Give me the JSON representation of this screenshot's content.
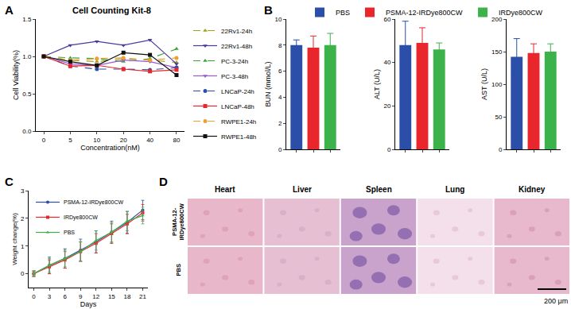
{
  "chart_data": [
    {
      "panel": "A",
      "type": "line",
      "title": "Cell Counting Kit-8",
      "x_label": "Concentration(nM)",
      "y_label": "Cell Viability(%)",
      "categories": [
        "0",
        "5",
        "10",
        "20",
        "40",
        "80"
      ],
      "ylim": [
        0,
        1.5
      ],
      "yticks": [
        {
          "value": 0,
          "label": "0.0"
        },
        0.5,
        {
          "value": 1,
          "label": "1.0"
        },
        1.5
      ],
      "grid": false,
      "legend": "right",
      "series": [
        {
          "name": "22Rv1-24h",
          "color": "#a0a020",
          "marker": "triangle-up",
          "line_style": "dash",
          "values": [
            1,
            0.95,
            0.93,
            0.97,
            0.95,
            0.92
          ]
        },
        {
          "name": "22Rv1-48h",
          "color": "#4b3a9a",
          "marker": "triangle-down",
          "line_style": "solid",
          "values": [
            1,
            1.15,
            1.2,
            1.15,
            1.22,
            0.9
          ]
        },
        {
          "name": "PC-3-24h",
          "color": "#3aa63a",
          "marker": "triangle-up",
          "line_style": "dash",
          "values": [
            1,
            0.98,
            0.97,
            0.93,
            0.97,
            1.1
          ]
        },
        {
          "name": "PC-3-48h",
          "color": "#9b59d0",
          "marker": "triangle-down",
          "line_style": "solid",
          "values": [
            1,
            0.9,
            0.88,
            0.95,
            0.93,
            0.85
          ]
        },
        {
          "name": "LNCaP-24h",
          "color": "#2a4fa8",
          "marker": "circle",
          "line_style": "dash",
          "values": [
            1,
            0.87,
            0.83,
            0.83,
            0.82,
            0.85
          ]
        },
        {
          "name": "LNCaP-48h",
          "color": "#e8262c",
          "marker": "square",
          "line_style": "solid",
          "values": [
            1,
            0.87,
            0.88,
            0.83,
            0.8,
            0.82
          ]
        },
        {
          "name": "RWPE1-24h",
          "color": "#f0a030",
          "marker": "circle",
          "line_style": "dash",
          "values": [
            1,
            0.95,
            0.97,
            0.98,
            0.95,
            0.98
          ]
        },
        {
          "name": "RWPE1-48h",
          "color": "#111111",
          "marker": "square",
          "line_style": "solid",
          "values": [
            1,
            0.93,
            0.88,
            1.05,
            1.02,
            0.75
          ]
        }
      ]
    },
    {
      "panel": "B",
      "type": "bar",
      "legend": "top",
      "tick_labels": "y",
      "grid": false,
      "categories": [
        "PBS",
        "PSMA-12-IRDye800CW",
        "IRDye800CW"
      ],
      "colors": [
        "#2b4fa8",
        "#e8262c",
        "#3cb34a"
      ],
      "subplots": [
        {
          "y_label": "BUN (mmol/L)",
          "ylim": [
            0,
            10
          ],
          "yticks": [
            0,
            2,
            4,
            6,
            8,
            10
          ],
          "values": [
            8.0,
            7.8,
            8.0
          ],
          "errors": [
            0.4,
            0.9,
            0.9
          ]
        },
        {
          "y_label": "ALT (U/L)",
          "ylim": [
            0,
            60
          ],
          "yticks": [
            0,
            20,
            40,
            60
          ],
          "values": [
            48,
            49,
            46
          ],
          "errors": [
            11,
            7,
            3
          ]
        },
        {
          "y_label": "AST (U/L)",
          "ylim": [
            0,
            200
          ],
          "yticks": [
            0,
            50,
            100,
            150,
            200
          ],
          "values": [
            142,
            148,
            150
          ],
          "errors": [
            28,
            14,
            12
          ]
        }
      ]
    },
    {
      "panel": "C",
      "type": "line",
      "x_label": "Days",
      "y_label": "Weight change(%)",
      "x": [
        0,
        3,
        6,
        9,
        12,
        15,
        18,
        21
      ],
      "xlim": [
        -1,
        22
      ],
      "xticks": [
        0,
        3,
        6,
        9,
        12,
        15,
        18,
        21
      ],
      "ylim": [
        -0.5,
        3
      ],
      "yticks": [
        0,
        1,
        2,
        3
      ],
      "grid": false,
      "legend": "top-left",
      "series": [
        {
          "name": "PSMA-12-IRDye800CW",
          "color": "#2b4fa8",
          "marker": "circle",
          "line_style": "solid",
          "values": [
            0,
            0.3,
            0.55,
            0.85,
            1.15,
            1.5,
            1.85,
            2.3
          ],
          "errors": [
            0.1,
            0.3,
            0.35,
            0.4,
            0.4,
            0.4,
            0.4,
            0.35
          ]
        },
        {
          "name": "IRDye800CW",
          "color": "#e8262c",
          "marker": "square",
          "line_style": "solid",
          "values": [
            0,
            0.25,
            0.5,
            0.8,
            1.1,
            1.45,
            1.8,
            2.2
          ],
          "errors": [
            0.1,
            0.25,
            0.3,
            0.35,
            0.35,
            0.35,
            0.35,
            0.3
          ]
        },
        {
          "name": "PBS",
          "color": "#3cb34a",
          "marker": "triangle-up",
          "line_style": "solid",
          "values": [
            0,
            0.3,
            0.55,
            0.8,
            1.2,
            1.5,
            1.9,
            2.1
          ],
          "errors": [
            0.1,
            0.25,
            0.3,
            0.35,
            0.35,
            0.35,
            0.35,
            0.3
          ]
        }
      ]
    },
    {
      "panel": "D",
      "type": "image_grid",
      "columns": [
        "Heart",
        "Liver",
        "Spleen",
        "Lung",
        "Kidney"
      ],
      "rows": [
        "PSMA-12-IRDye800CW",
        "PBS"
      ],
      "scale_bar": "200 μm"
    }
  ]
}
